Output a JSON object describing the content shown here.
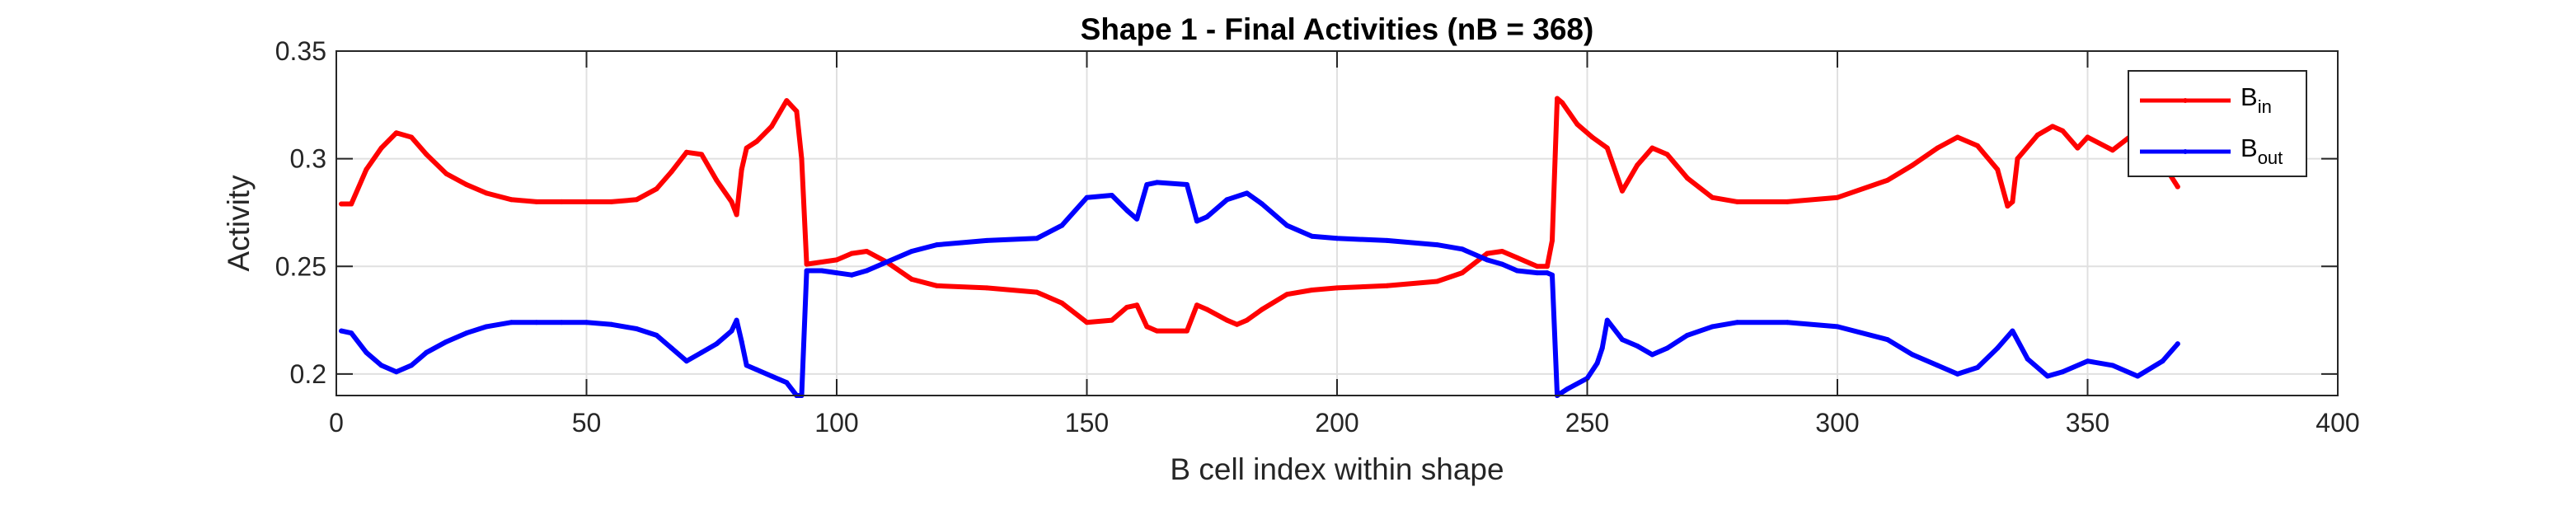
{
  "chart_data": {
    "type": "line",
    "title": "Shape 1 - Final Activities (nB = 368)",
    "xlabel": "B cell index within shape",
    "ylabel": "Activity",
    "xlim": [
      0,
      400
    ],
    "ylim": [
      0.19,
      0.35
    ],
    "xticks": [
      0,
      50,
      100,
      150,
      200,
      250,
      300,
      350,
      400
    ],
    "yticks": [
      0.2,
      0.25,
      0.3,
      0.35
    ],
    "xtick_labels": [
      "0",
      "50",
      "100",
      "150",
      "200",
      "250",
      "300",
      "350",
      "400"
    ],
    "ytick_labels": [
      "0.2",
      "0.25",
      "0.3",
      "0.35"
    ],
    "grid": true,
    "legend_position": "top-right",
    "series": [
      {
        "name": "B_in",
        "legend_main": "B",
        "legend_sub": "in",
        "color": "#ff0000",
        "x": [
          1,
          3,
          6,
          9,
          12,
          15,
          18,
          22,
          26,
          30,
          35,
          40,
          45,
          50,
          55,
          60,
          64,
          67,
          70,
          73,
          76,
          79,
          80,
          81,
          82,
          84,
          87,
          90,
          92,
          93,
          94,
          97,
          100,
          103,
          106,
          110,
          115,
          120,
          130,
          140,
          145,
          150,
          155,
          158,
          160,
          162,
          164,
          170,
          172,
          174,
          178,
          180,
          182,
          185,
          190,
          195,
          200,
          210,
          220,
          225,
          230,
          233,
          236,
          240,
          242,
          243,
          244,
          245,
          248,
          251,
          254,
          257,
          260,
          263,
          266,
          270,
          275,
          280,
          290,
          300,
          310,
          315,
          320,
          324,
          328,
          332,
          334,
          335,
          336,
          340,
          343,
          345,
          348,
          350,
          355,
          360,
          365,
          368
        ],
        "y": [
          0.279,
          0.279,
          0.295,
          0.305,
          0.312,
          0.31,
          0.302,
          0.293,
          0.288,
          0.284,
          0.281,
          0.28,
          0.28,
          0.28,
          0.28,
          0.281,
          0.286,
          0.294,
          0.303,
          0.302,
          0.29,
          0.28,
          0.274,
          0.295,
          0.305,
          0.308,
          0.315,
          0.327,
          0.322,
          0.3,
          0.251,
          0.252,
          0.253,
          0.256,
          0.257,
          0.252,
          0.244,
          0.241,
          0.24,
          0.238,
          0.233,
          0.224,
          0.225,
          0.231,
          0.232,
          0.222,
          0.22,
          0.22,
          0.232,
          0.23,
          0.225,
          0.223,
          0.225,
          0.23,
          0.237,
          0.239,
          0.24,
          0.241,
          0.243,
          0.247,
          0.256,
          0.257,
          0.254,
          0.25,
          0.25,
          0.262,
          0.328,
          0.326,
          0.316,
          0.31,
          0.305,
          0.285,
          0.297,
          0.305,
          0.302,
          0.291,
          0.282,
          0.28,
          0.28,
          0.282,
          0.29,
          0.297,
          0.305,
          0.31,
          0.306,
          0.295,
          0.278,
          0.28,
          0.3,
          0.311,
          0.315,
          0.313,
          0.305,
          0.31,
          0.304,
          0.313,
          0.298,
          0.287
        ]
      },
      {
        "name": "B_out",
        "legend_main": "B",
        "legend_sub": "out",
        "color": "#0000ff",
        "x": [
          1,
          3,
          6,
          9,
          12,
          15,
          18,
          22,
          26,
          30,
          35,
          40,
          45,
          50,
          55,
          60,
          64,
          67,
          70,
          73,
          76,
          79,
          80,
          81,
          82,
          84,
          87,
          90,
          92,
          93,
          94,
          97,
          100,
          103,
          106,
          110,
          115,
          120,
          125,
          130,
          140,
          145,
          150,
          155,
          158,
          160,
          162,
          164,
          170,
          172,
          174,
          178,
          182,
          185,
          190,
          195,
          200,
          210,
          220,
          225,
          230,
          233,
          236,
          240,
          242,
          243,
          244,
          246,
          250,
          252,
          253,
          254,
          257,
          260,
          263,
          266,
          270,
          275,
          280,
          290,
          300,
          310,
          315,
          320,
          324,
          328,
          332,
          335,
          338,
          342,
          345,
          350,
          355,
          360,
          365,
          368
        ],
        "y": [
          0.22,
          0.219,
          0.21,
          0.204,
          0.201,
          0.204,
          0.21,
          0.215,
          0.219,
          0.222,
          0.224,
          0.224,
          0.224,
          0.224,
          0.223,
          0.221,
          0.218,
          0.212,
          0.206,
          0.21,
          0.214,
          0.22,
          0.225,
          0.215,
          0.204,
          0.202,
          0.199,
          0.196,
          0.19,
          0.19,
          0.248,
          0.248,
          0.247,
          0.246,
          0.248,
          0.252,
          0.257,
          0.26,
          0.261,
          0.262,
          0.263,
          0.269,
          0.282,
          0.283,
          0.276,
          0.272,
          0.288,
          0.289,
          0.288,
          0.271,
          0.273,
          0.281,
          0.284,
          0.279,
          0.269,
          0.264,
          0.263,
          0.262,
          0.26,
          0.258,
          0.253,
          0.251,
          0.248,
          0.247,
          0.247,
          0.246,
          0.19,
          0.193,
          0.198,
          0.205,
          0.212,
          0.225,
          0.216,
          0.213,
          0.209,
          0.212,
          0.218,
          0.222,
          0.224,
          0.224,
          0.222,
          0.216,
          0.209,
          0.204,
          0.2,
          0.203,
          0.212,
          0.22,
          0.207,
          0.199,
          0.201,
          0.206,
          0.204,
          0.199,
          0.206,
          0.214
        ]
      }
    ]
  }
}
